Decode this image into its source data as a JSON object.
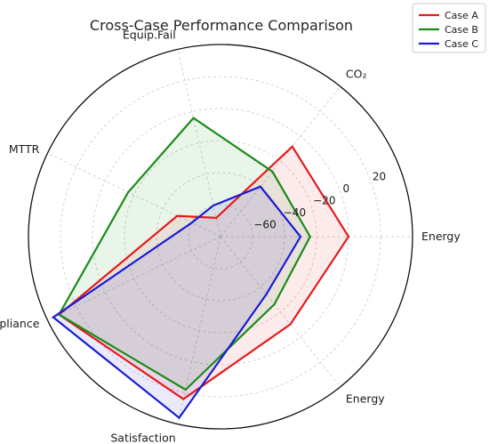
{
  "chart_data": {
    "type": "radar",
    "title": "Cross-Case Performance Comparison",
    "categories": [
      "Energy",
      "CO₂",
      "Equip.Fail",
      "MTTR",
      "Compliance",
      "Satisfaction",
      "Energy"
    ],
    "radial_ticks": [
      -60,
      -40,
      -20,
      0,
      20
    ],
    "rlim": [
      -80,
      40
    ],
    "grid": true,
    "legend_position": "top-right",
    "series": [
      {
        "name": "Case A",
        "color": "#e41a1c",
        "values": [
          0,
          -8,
          -68,
          -50,
          32,
          24,
          -10
        ]
      },
      {
        "name": "Case B",
        "color": "#1a8c1a",
        "values": [
          -24,
          -28,
          -4,
          -16,
          32,
          18,
          -26
        ]
      },
      {
        "name": "Case C",
        "color": "#1a1ad6",
        "values": [
          -30,
          -40,
          -60,
          -60,
          36,
          36,
          -34
        ]
      }
    ]
  }
}
